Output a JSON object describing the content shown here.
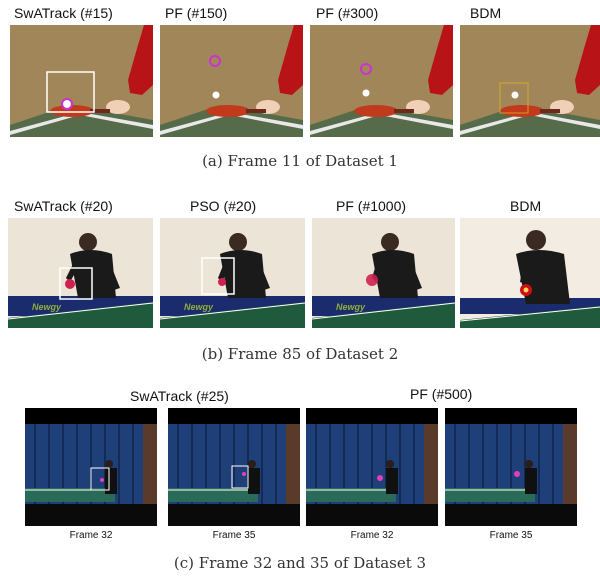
{
  "row_a": {
    "labels": [
      "SwATrack (#15)",
      "PF (#150)",
      "PF (#300)",
      "BDM"
    ],
    "caption": "(a)  Frame 11 of Dataset 1"
  },
  "row_b": {
    "labels": [
      "SwATrack (#20)",
      "PSO (#20)",
      "PF (#1000)",
      "BDM"
    ],
    "caption": "(b)  Frame 85 of Dataset 2",
    "banner_text": "Newgy"
  },
  "row_c": {
    "group_labels": [
      "SwATrack (#25)",
      "PF (#500)"
    ],
    "frame_labels": [
      "Frame 32",
      "Frame 35",
      "Frame 32",
      "Frame 35"
    ],
    "caption": "(c)  Frame 32 and 35 of Dataset 3"
  },
  "colors": {
    "wall_tan": "#a88e60",
    "arm_red": "#b81418",
    "paddle_red": "#c23a1c",
    "track_magenta": "#cc33cc",
    "box_white": "#ffffff",
    "curtain_blue": "#1f3f78",
    "table_green": "#1f5a3c"
  }
}
